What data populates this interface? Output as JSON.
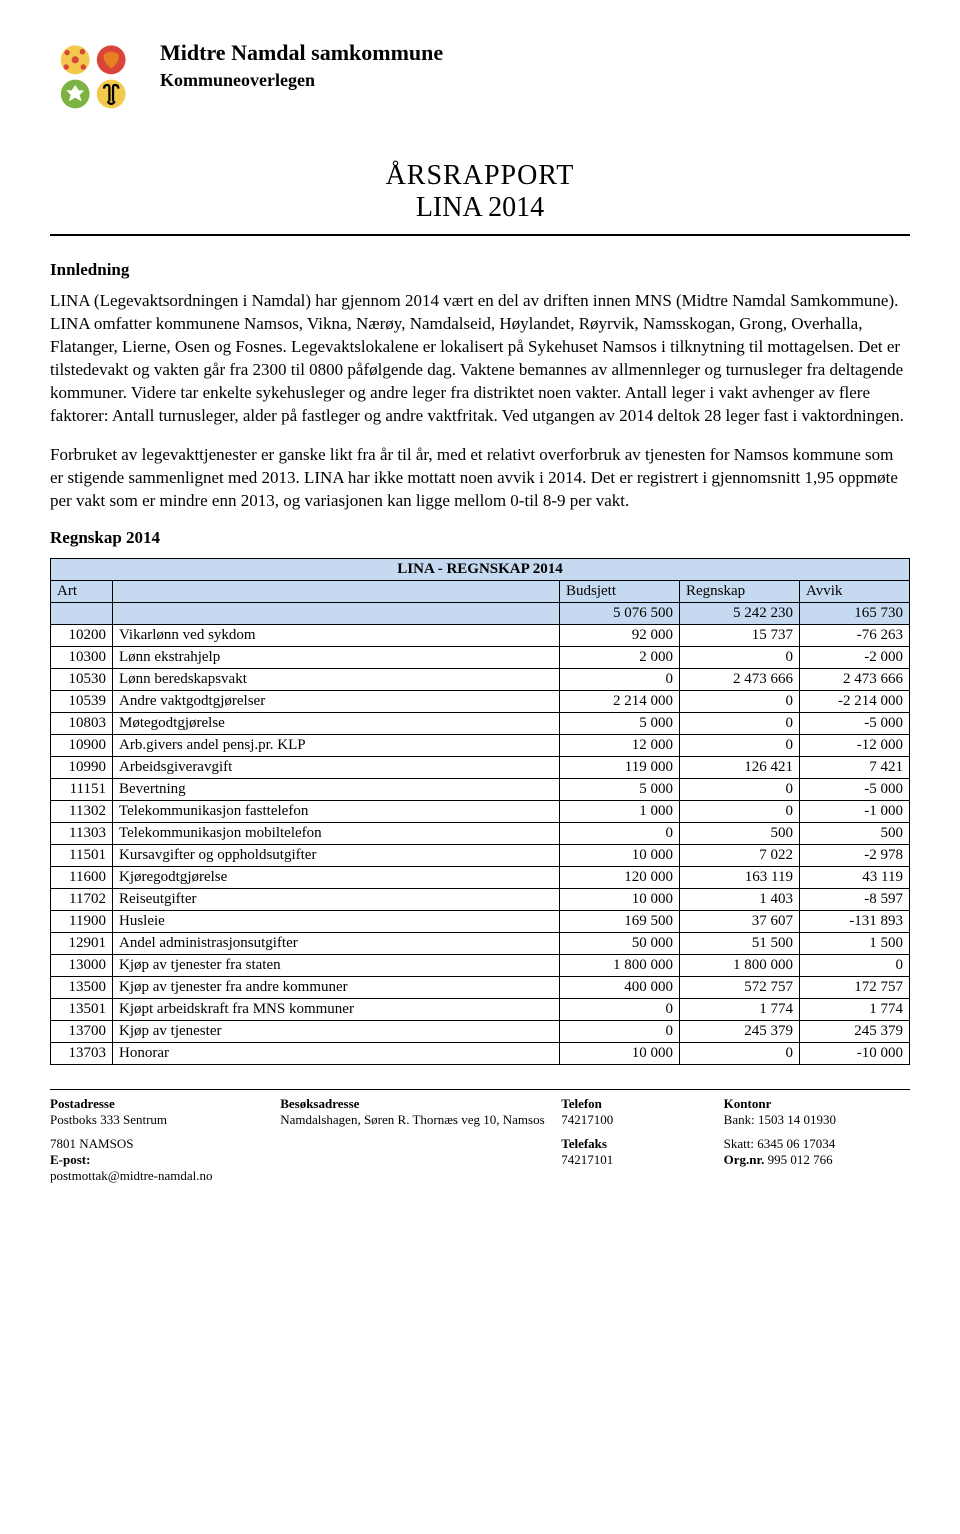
{
  "header": {
    "org": "Midtre Namdal samkommune",
    "dept": "Kommuneoverlegen"
  },
  "title": {
    "line1": "ÅRSRAPPORT",
    "line2": "LINA 2014"
  },
  "sections": {
    "intro_heading": "Innledning",
    "para1": "LINA (Legevaktsordningen i Namdal) har gjennom 2014 vært en del av driften innen MNS (Midtre Namdal Samkommune). LINA omfatter kommunene Namsos, Vikna, Nærøy, Namdalseid, Høylandet, Røyrvik, Namsskogan, Grong, Overhalla, Flatanger, Lierne, Osen og Fosnes. Legevaktslokalene er lokalisert på Sykehuset Namsos i tilknytning til mottagelsen. Det er tilstedevakt og vakten går fra 2300 til 0800 påfølgende dag. Vaktene bemannes av allmennleger og turnusleger fra deltagende kommuner. Videre tar enkelte sykehusleger og andre leger fra distriktet noen vakter. Antall leger i vakt avhenger av flere faktorer: Antall turnusleger, alder på fastleger og andre vaktfritak. Ved utgangen av 2014 deltok 28 leger fast i vaktordningen.",
    "para2": "Forbruket av legevakttjenester er ganske likt fra år til år, med et relativt overforbruk av tjenesten for Namsos kommune som er stigende sammenlignet med 2013. LINA har ikke mottatt noen avvik i 2014. Det er registrert i gjennomsnitt 1,95 oppmøte per vakt som er mindre enn 2013, og variasjonen kan ligge mellom 0-til 8-9 per vakt.",
    "regnskap_heading": "Regnskap 2014"
  },
  "table": {
    "title": "LINA - REGNSKAP 2014",
    "columns": [
      "Art",
      "",
      "Budsjett",
      "Regnskap",
      "Avvik"
    ],
    "totals": {
      "budsjett": "5 076 500",
      "regnskap": "5 242 230",
      "avvik": "165 730"
    },
    "rows": [
      {
        "code": "10200",
        "desc": "Vikarlønn ved sykdom",
        "budsjett": "92 000",
        "regnskap": "15 737",
        "avvik": "-76 263"
      },
      {
        "code": "10300",
        "desc": "Lønn ekstrahjelp",
        "budsjett": "2 000",
        "regnskap": "0",
        "avvik": "-2 000"
      },
      {
        "code": "10530",
        "desc": "Lønn beredskapsvakt",
        "budsjett": "0",
        "regnskap": "2 473 666",
        "avvik": "2 473 666"
      },
      {
        "code": "10539",
        "desc": "Andre vaktgodtgjørelser",
        "budsjett": "2 214 000",
        "regnskap": "0",
        "avvik": "-2 214 000"
      },
      {
        "code": "10803",
        "desc": "Møtegodtgjørelse",
        "budsjett": "5 000",
        "regnskap": "0",
        "avvik": "-5 000"
      },
      {
        "code": "10900",
        "desc": "Arb.givers andel pensj.pr. KLP",
        "budsjett": "12 000",
        "regnskap": "0",
        "avvik": "-12 000"
      },
      {
        "code": "10990",
        "desc": "Arbeidsgiveravgift",
        "budsjett": "119 000",
        "regnskap": "126 421",
        "avvik": "7 421"
      },
      {
        "code": "11151",
        "desc": "Bevertning",
        "budsjett": "5 000",
        "regnskap": "0",
        "avvik": "-5 000"
      },
      {
        "code": "11302",
        "desc": "Telekommunikasjon fasttelefon",
        "budsjett": "1 000",
        "regnskap": "0",
        "avvik": "-1 000"
      },
      {
        "code": "11303",
        "desc": "Telekommunikasjon mobiltelefon",
        "budsjett": "0",
        "regnskap": "500",
        "avvik": "500"
      },
      {
        "code": "11501",
        "desc": "Kursavgifter og oppholdsutgifter",
        "budsjett": "10 000",
        "regnskap": "7 022",
        "avvik": "-2 978"
      },
      {
        "code": "11600",
        "desc": "Kjøregodtgjørelse",
        "budsjett": "120 000",
        "regnskap": "163 119",
        "avvik": "43 119"
      },
      {
        "code": "11702",
        "desc": "Reiseutgifter",
        "budsjett": "10 000",
        "regnskap": "1 403",
        "avvik": "-8 597"
      },
      {
        "code": "11900",
        "desc": "Husleie",
        "budsjett": "169 500",
        "regnskap": "37 607",
        "avvik": "-131 893"
      },
      {
        "code": "12901",
        "desc": "Andel administrasjonsutgifter",
        "budsjett": "50 000",
        "regnskap": "51 500",
        "avvik": "1 500"
      },
      {
        "code": "13000",
        "desc": "Kjøp av tjenester fra staten",
        "budsjett": "1 800 000",
        "regnskap": "1 800 000",
        "avvik": "0"
      },
      {
        "code": "13500",
        "desc": "Kjøp av tjenester fra andre kommuner",
        "budsjett": "400 000",
        "regnskap": "572 757",
        "avvik": "172 757"
      },
      {
        "code": "13501",
        "desc": "Kjøpt arbeidskraft fra MNS kommuner",
        "budsjett": "0",
        "regnskap": "1 774",
        "avvik": "1 774"
      },
      {
        "code": "13700",
        "desc": "Kjøp av tjenester",
        "budsjett": "0",
        "regnskap": "245 379",
        "avvik": "245 379"
      },
      {
        "code": "13703",
        "desc": "Honorar",
        "budsjett": "10 000",
        "regnskap": "0",
        "avvik": "-10 000"
      }
    ]
  },
  "footer": {
    "post_h": "Postadresse",
    "post1": "Postboks 333 Sentrum",
    "post2": "7801 NAMSOS",
    "post3": "E-post:",
    "post4": "postmottak@midtre-namdal.no",
    "visit_h": "Besøksadresse",
    "visit1": "Namdalshagen, Søren R. Thornæs veg 10, Namsos",
    "tel_h": "Telefon",
    "tel1": "74217100",
    "fax_h": "Telefaks",
    "fax1": "74217101",
    "acct_h": "Kontonr",
    "acct1": "Bank: 1503 14 01930",
    "tax": "Skatt: 6345 06 17034",
    "org_h": "Org.nr.",
    "org": "995 012 766"
  },
  "logo_colors": {
    "red": "#d9453a",
    "yellow": "#f2c94c",
    "green": "#7cb342",
    "orange": "#e67e22"
  }
}
